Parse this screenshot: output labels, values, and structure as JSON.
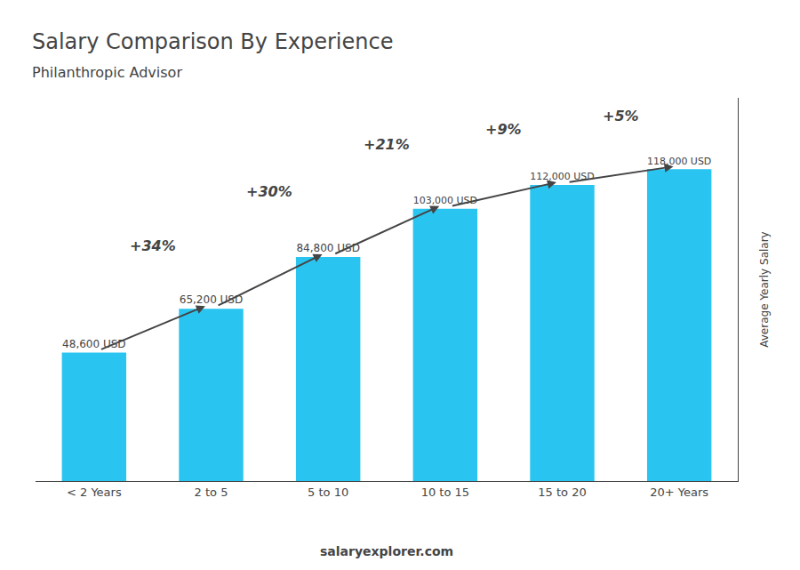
{
  "chart_data": {
    "type": "bar",
    "title": "Salary Comparison By Experience",
    "subtitle": "Philanthropic Advisor",
    "categories": [
      "< 2 Years",
      "2 to 5",
      "5 to 10",
      "10 to 15",
      "15 to 20",
      "20+ Years"
    ],
    "values": [
      48600,
      65200,
      84800,
      103000,
      112000,
      118000
    ],
    "value_labels": [
      "48,600 USD",
      "65,200 USD",
      "84,800 USD",
      "103,000 USD",
      "112,000 USD",
      "118,000 USD"
    ],
    "data_labels": true,
    "annotations": [
      "+34%",
      "+30%",
      "+21%",
      "+9%",
      "+5%"
    ],
    "ylabel": "Average Yearly Salary",
    "footer": "salaryexplorer.com",
    "color": "#29c4f0",
    "ylim": [
      0,
      145000
    ],
    "grid": false,
    "tick_labels": "x"
  }
}
